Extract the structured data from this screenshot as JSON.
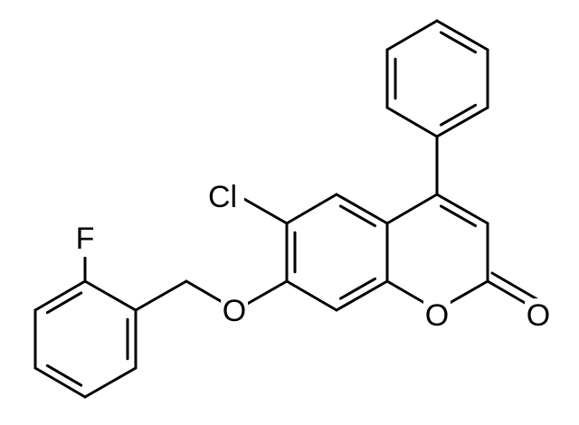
{
  "atoms": [
    "Cl",
    "F",
    "O",
    "O",
    "O"
  ]
}
